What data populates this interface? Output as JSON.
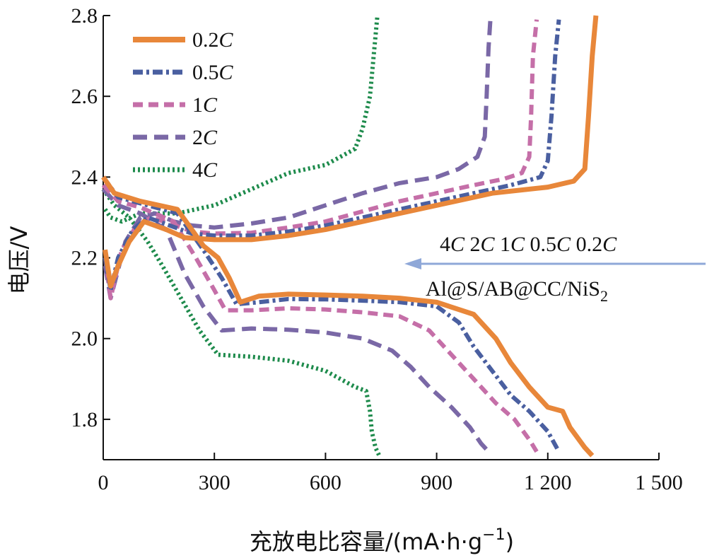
{
  "chart_data": {
    "type": "line",
    "title": "",
    "xlabel": "充放电比容量/(mA·h·g",
    "xlabel_sup": "−1",
    "xlabel_close": ")",
    "ylabel": "电压/V",
    "xlim": [
      0,
      1500
    ],
    "ylim": [
      1.7,
      2.8
    ],
    "xticks": [
      0,
      300,
      600,
      900,
      1200,
      1500
    ],
    "xtick_labels": [
      "0",
      "300",
      "600",
      "900",
      "1 200",
      "1 500"
    ],
    "yticks": [
      1.8,
      2.0,
      2.2,
      2.4,
      2.6,
      2.8
    ],
    "ytick_labels": [
      "1.8",
      "2.0",
      "2.2",
      "2.4",
      "2.6",
      "2.8"
    ],
    "grid": false,
    "legend_position": "top-left",
    "annotations": {
      "rates": [
        "4C",
        "2C",
        "1C",
        "0.5C",
        "0.2C"
      ],
      "arrow": "left",
      "sample_main": "Al@S/AB@CC/NiS",
      "sample_sub": "2"
    },
    "series": [
      {
        "name": "0.2C",
        "color": "#E8873A",
        "style": "solid",
        "charge": [
          [
            5,
            2.22
          ],
          [
            20,
            2.13
          ],
          [
            40,
            2.18
          ],
          [
            70,
            2.24
          ],
          [
            110,
            2.29
          ],
          [
            170,
            2.27
          ],
          [
            220,
            2.25
          ],
          [
            300,
            2.245
          ],
          [
            400,
            2.245
          ],
          [
            500,
            2.255
          ],
          [
            600,
            2.27
          ],
          [
            700,
            2.29
          ],
          [
            800,
            2.31
          ],
          [
            900,
            2.33
          ],
          [
            1000,
            2.35
          ],
          [
            1050,
            2.36
          ],
          [
            1100,
            2.365
          ],
          [
            1200,
            2.375
          ],
          [
            1270,
            2.39
          ],
          [
            1300,
            2.42
          ],
          [
            1310,
            2.55
          ],
          [
            1320,
            2.7
          ],
          [
            1330,
            2.8
          ]
        ],
        "discharge": [
          [
            0,
            2.4
          ],
          [
            30,
            2.36
          ],
          [
            100,
            2.34
          ],
          [
            200,
            2.32
          ],
          [
            270,
            2.23
          ],
          [
            310,
            2.2
          ],
          [
            340,
            2.15
          ],
          [
            370,
            2.09
          ],
          [
            420,
            2.105
          ],
          [
            500,
            2.11
          ],
          [
            600,
            2.108
          ],
          [
            700,
            2.105
          ],
          [
            800,
            2.1
          ],
          [
            900,
            2.09
          ],
          [
            1000,
            2.06
          ],
          [
            1060,
            2.0
          ],
          [
            1100,
            1.94
          ],
          [
            1150,
            1.88
          ],
          [
            1200,
            1.83
          ],
          [
            1240,
            1.82
          ],
          [
            1260,
            1.78
          ],
          [
            1300,
            1.73
          ],
          [
            1320,
            1.71
          ]
        ]
      },
      {
        "name": "0.5C",
        "color": "#4A5FA0",
        "style": "dashdot",
        "charge": [
          [
            5,
            2.2
          ],
          [
            20,
            2.12
          ],
          [
            40,
            2.2
          ],
          [
            80,
            2.27
          ],
          [
            120,
            2.3
          ],
          [
            180,
            2.28
          ],
          [
            240,
            2.26
          ],
          [
            300,
            2.255
          ],
          [
            400,
            2.255
          ],
          [
            500,
            2.265
          ],
          [
            600,
            2.28
          ],
          [
            700,
            2.3
          ],
          [
            800,
            2.32
          ],
          [
            900,
            2.34
          ],
          [
            1000,
            2.36
          ],
          [
            1100,
            2.38
          ],
          [
            1180,
            2.4
          ],
          [
            1200,
            2.44
          ],
          [
            1210,
            2.55
          ],
          [
            1220,
            2.7
          ],
          [
            1230,
            2.79
          ]
        ],
        "discharge": [
          [
            0,
            2.4
          ],
          [
            40,
            2.35
          ],
          [
            100,
            2.335
          ],
          [
            200,
            2.31
          ],
          [
            270,
            2.22
          ],
          [
            320,
            2.15
          ],
          [
            360,
            2.085
          ],
          [
            420,
            2.09
          ],
          [
            500,
            2.098
          ],
          [
            600,
            2.097
          ],
          [
            700,
            2.094
          ],
          [
            800,
            2.09
          ],
          [
            900,
            2.08
          ],
          [
            960,
            2.04
          ],
          [
            1000,
            1.98
          ],
          [
            1050,
            1.92
          ],
          [
            1100,
            1.86
          ],
          [
            1150,
            1.82
          ],
          [
            1200,
            1.77
          ],
          [
            1230,
            1.72
          ]
        ]
      },
      {
        "name": "1C",
        "color": "#C56FA8",
        "style": "dashed",
        "charge": [
          [
            5,
            2.2
          ],
          [
            20,
            2.1
          ],
          [
            50,
            2.22
          ],
          [
            90,
            2.28
          ],
          [
            130,
            2.3
          ],
          [
            180,
            2.285
          ],
          [
            240,
            2.265
          ],
          [
            300,
            2.26
          ],
          [
            400,
            2.262
          ],
          [
            500,
            2.275
          ],
          [
            600,
            2.29
          ],
          [
            700,
            2.315
          ],
          [
            800,
            2.34
          ],
          [
            900,
            2.36
          ],
          [
            1000,
            2.38
          ],
          [
            1080,
            2.395
          ],
          [
            1130,
            2.41
          ],
          [
            1150,
            2.45
          ],
          [
            1155,
            2.55
          ],
          [
            1160,
            2.7
          ],
          [
            1170,
            2.79
          ]
        ],
        "discharge": [
          [
            0,
            2.38
          ],
          [
            40,
            2.34
          ],
          [
            100,
            2.325
          ],
          [
            190,
            2.29
          ],
          [
            250,
            2.2
          ],
          [
            300,
            2.12
          ],
          [
            330,
            2.07
          ],
          [
            400,
            2.07
          ],
          [
            500,
            2.075
          ],
          [
            600,
            2.072
          ],
          [
            700,
            2.065
          ],
          [
            800,
            2.055
          ],
          [
            880,
            2.02
          ],
          [
            940,
            1.96
          ],
          [
            1000,
            1.9
          ],
          [
            1060,
            1.84
          ],
          [
            1110,
            1.8
          ],
          [
            1150,
            1.75
          ],
          [
            1170,
            1.72
          ]
        ]
      },
      {
        "name": "2C",
        "color": "#7A68A6",
        "style": "longdash",
        "charge": [
          [
            5,
            2.18
          ],
          [
            20,
            2.1
          ],
          [
            60,
            2.24
          ],
          [
            100,
            2.3
          ],
          [
            140,
            2.31
          ],
          [
            190,
            2.29
          ],
          [
            240,
            2.28
          ],
          [
            300,
            2.275
          ],
          [
            400,
            2.285
          ],
          [
            500,
            2.3
          ],
          [
            600,
            2.33
          ],
          [
            700,
            2.36
          ],
          [
            800,
            2.385
          ],
          [
            900,
            2.4
          ],
          [
            960,
            2.42
          ],
          [
            1010,
            2.45
          ],
          [
            1030,
            2.5
          ],
          [
            1035,
            2.6
          ],
          [
            1040,
            2.72
          ],
          [
            1045,
            2.79
          ]
        ],
        "discharge": [
          [
            0,
            2.37
          ],
          [
            40,
            2.33
          ],
          [
            100,
            2.31
          ],
          [
            170,
            2.27
          ],
          [
            220,
            2.16
          ],
          [
            270,
            2.08
          ],
          [
            320,
            2.02
          ],
          [
            400,
            2.025
          ],
          [
            500,
            2.022
          ],
          [
            600,
            2.015
          ],
          [
            700,
            2.0
          ],
          [
            780,
            1.97
          ],
          [
            830,
            1.93
          ],
          [
            880,
            1.88
          ],
          [
            940,
            1.83
          ],
          [
            990,
            1.78
          ],
          [
            1020,
            1.74
          ],
          [
            1040,
            1.72
          ]
        ]
      },
      {
        "name": "4C",
        "color": "#1E8B4C",
        "style": "dotted",
        "charge": [
          [
            5,
            2.32
          ],
          [
            20,
            2.3
          ],
          [
            50,
            2.29
          ],
          [
            100,
            2.31
          ],
          [
            200,
            2.31
          ],
          [
            300,
            2.33
          ],
          [
            400,
            2.37
          ],
          [
            500,
            2.41
          ],
          [
            600,
            2.43
          ],
          [
            680,
            2.47
          ],
          [
            700,
            2.52
          ],
          [
            720,
            2.6
          ],
          [
            730,
            2.7
          ],
          [
            740,
            2.8
          ]
        ],
        "discharge": [
          [
            0,
            2.37
          ],
          [
            30,
            2.33
          ],
          [
            70,
            2.3
          ],
          [
            120,
            2.24
          ],
          [
            160,
            2.18
          ],
          [
            210,
            2.1
          ],
          [
            260,
            2.02
          ],
          [
            310,
            1.96
          ],
          [
            400,
            1.955
          ],
          [
            500,
            1.945
          ],
          [
            600,
            1.92
          ],
          [
            680,
            1.88
          ],
          [
            710,
            1.87
          ],
          [
            720,
            1.82
          ],
          [
            725,
            1.77
          ],
          [
            735,
            1.73
          ],
          [
            745,
            1.71
          ]
        ]
      }
    ]
  }
}
